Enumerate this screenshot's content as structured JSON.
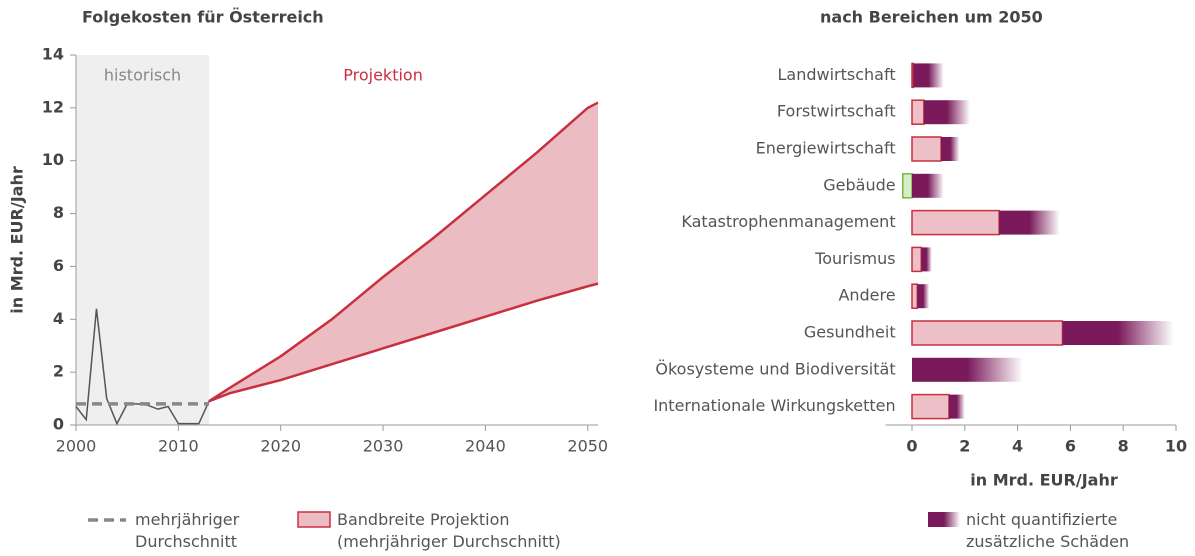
{
  "chart_data": [
    {
      "type": "line",
      "title": "Folgekosten für Österreich",
      "ylabel": "in Mrd. EUR/Jahr",
      "xlim": [
        2000,
        2051
      ],
      "xticks": [
        2000,
        2010,
        2020,
        2030,
        2040,
        2050
      ],
      "ylim": [
        0,
        14
      ],
      "yticks": [
        0,
        2,
        4,
        6,
        8,
        10,
        12,
        14
      ],
      "regions": [
        {
          "label": "historisch",
          "x": [
            2000,
            2013
          ],
          "color": "#efefef",
          "text_color": "#888888"
        }
      ],
      "annotations": [
        {
          "text": "Projektion",
          "x": 2030,
          "y": 13.2,
          "color": "#c8303f"
        }
      ],
      "series": [
        {
          "type": "line",
          "color": "#555555",
          "x": [
            2000,
            2001,
            2002,
            2003,
            2004,
            2005,
            2006,
            2007,
            2008,
            2009,
            2010,
            2011,
            2012,
            2013
          ],
          "values": [
            0.7,
            0.2,
            4.4,
            1.0,
            0.05,
            0.8,
            0.8,
            0.75,
            0.6,
            0.7,
            0.05,
            0.05,
            0.05,
            0.9
          ]
        },
        {
          "type": "dashed",
          "name": "mehrjähriger Durchschnitt",
          "color": "#888888",
          "x": [
            2000,
            2013
          ],
          "values": [
            0.8,
            0.8
          ]
        },
        {
          "type": "band",
          "name": "Bandbreite Projektion (mehrjähriger Durchschnitt)",
          "color": "#ebbcc1",
          "edge_color": "#c8303f",
          "x": [
            2013,
            2015,
            2020,
            2025,
            2030,
            2035,
            2040,
            2045,
            2050,
            2051
          ],
          "lower": [
            0.9,
            1.2,
            1.7,
            2.3,
            2.9,
            3.5,
            4.1,
            4.7,
            5.25,
            5.35
          ],
          "upper": [
            0.9,
            1.4,
            2.6,
            4.0,
            5.6,
            7.1,
            8.7,
            10.3,
            12.0,
            12.2
          ]
        }
      ]
    },
    {
      "type": "barh",
      "title": "nach Bereichen um 2050",
      "xlabel": "in Mrd. EUR/Jahr",
      "xlim": [
        -1,
        10
      ],
      "xticks": [
        0,
        2,
        4,
        6,
        8,
        10
      ],
      "categories": [
        "Landwirtschaft",
        "Forstwirtschaft",
        "Energiewirtschaft",
        "Gebäude",
        "Katastrophenmanagement",
        "Tourismus",
        "Andere",
        "Gesundheit",
        "Ökosysteme und Biodiversität",
        "Internationale Wirkungsketten"
      ],
      "series": [
        {
          "color": "#ecc0c6",
          "edge_color": "#c8303f",
          "negative_color": "#d9ecc8",
          "negative_edge_color": "#7ab648",
          "values": [
            0.05,
            0.45,
            1.1,
            -0.35,
            3.3,
            0.35,
            0.2,
            5.7,
            0,
            1.4
          ]
        },
        {
          "name": "nicht quantifizierte zusätzliche Schäden",
          "color": "#7a1a5a",
          "fade": true,
          "values": [
            1.15,
            1.75,
            0.7,
            1.2,
            2.3,
            0.4,
            0.45,
            4.2,
            4.2,
            0.6
          ]
        }
      ]
    }
  ]
}
